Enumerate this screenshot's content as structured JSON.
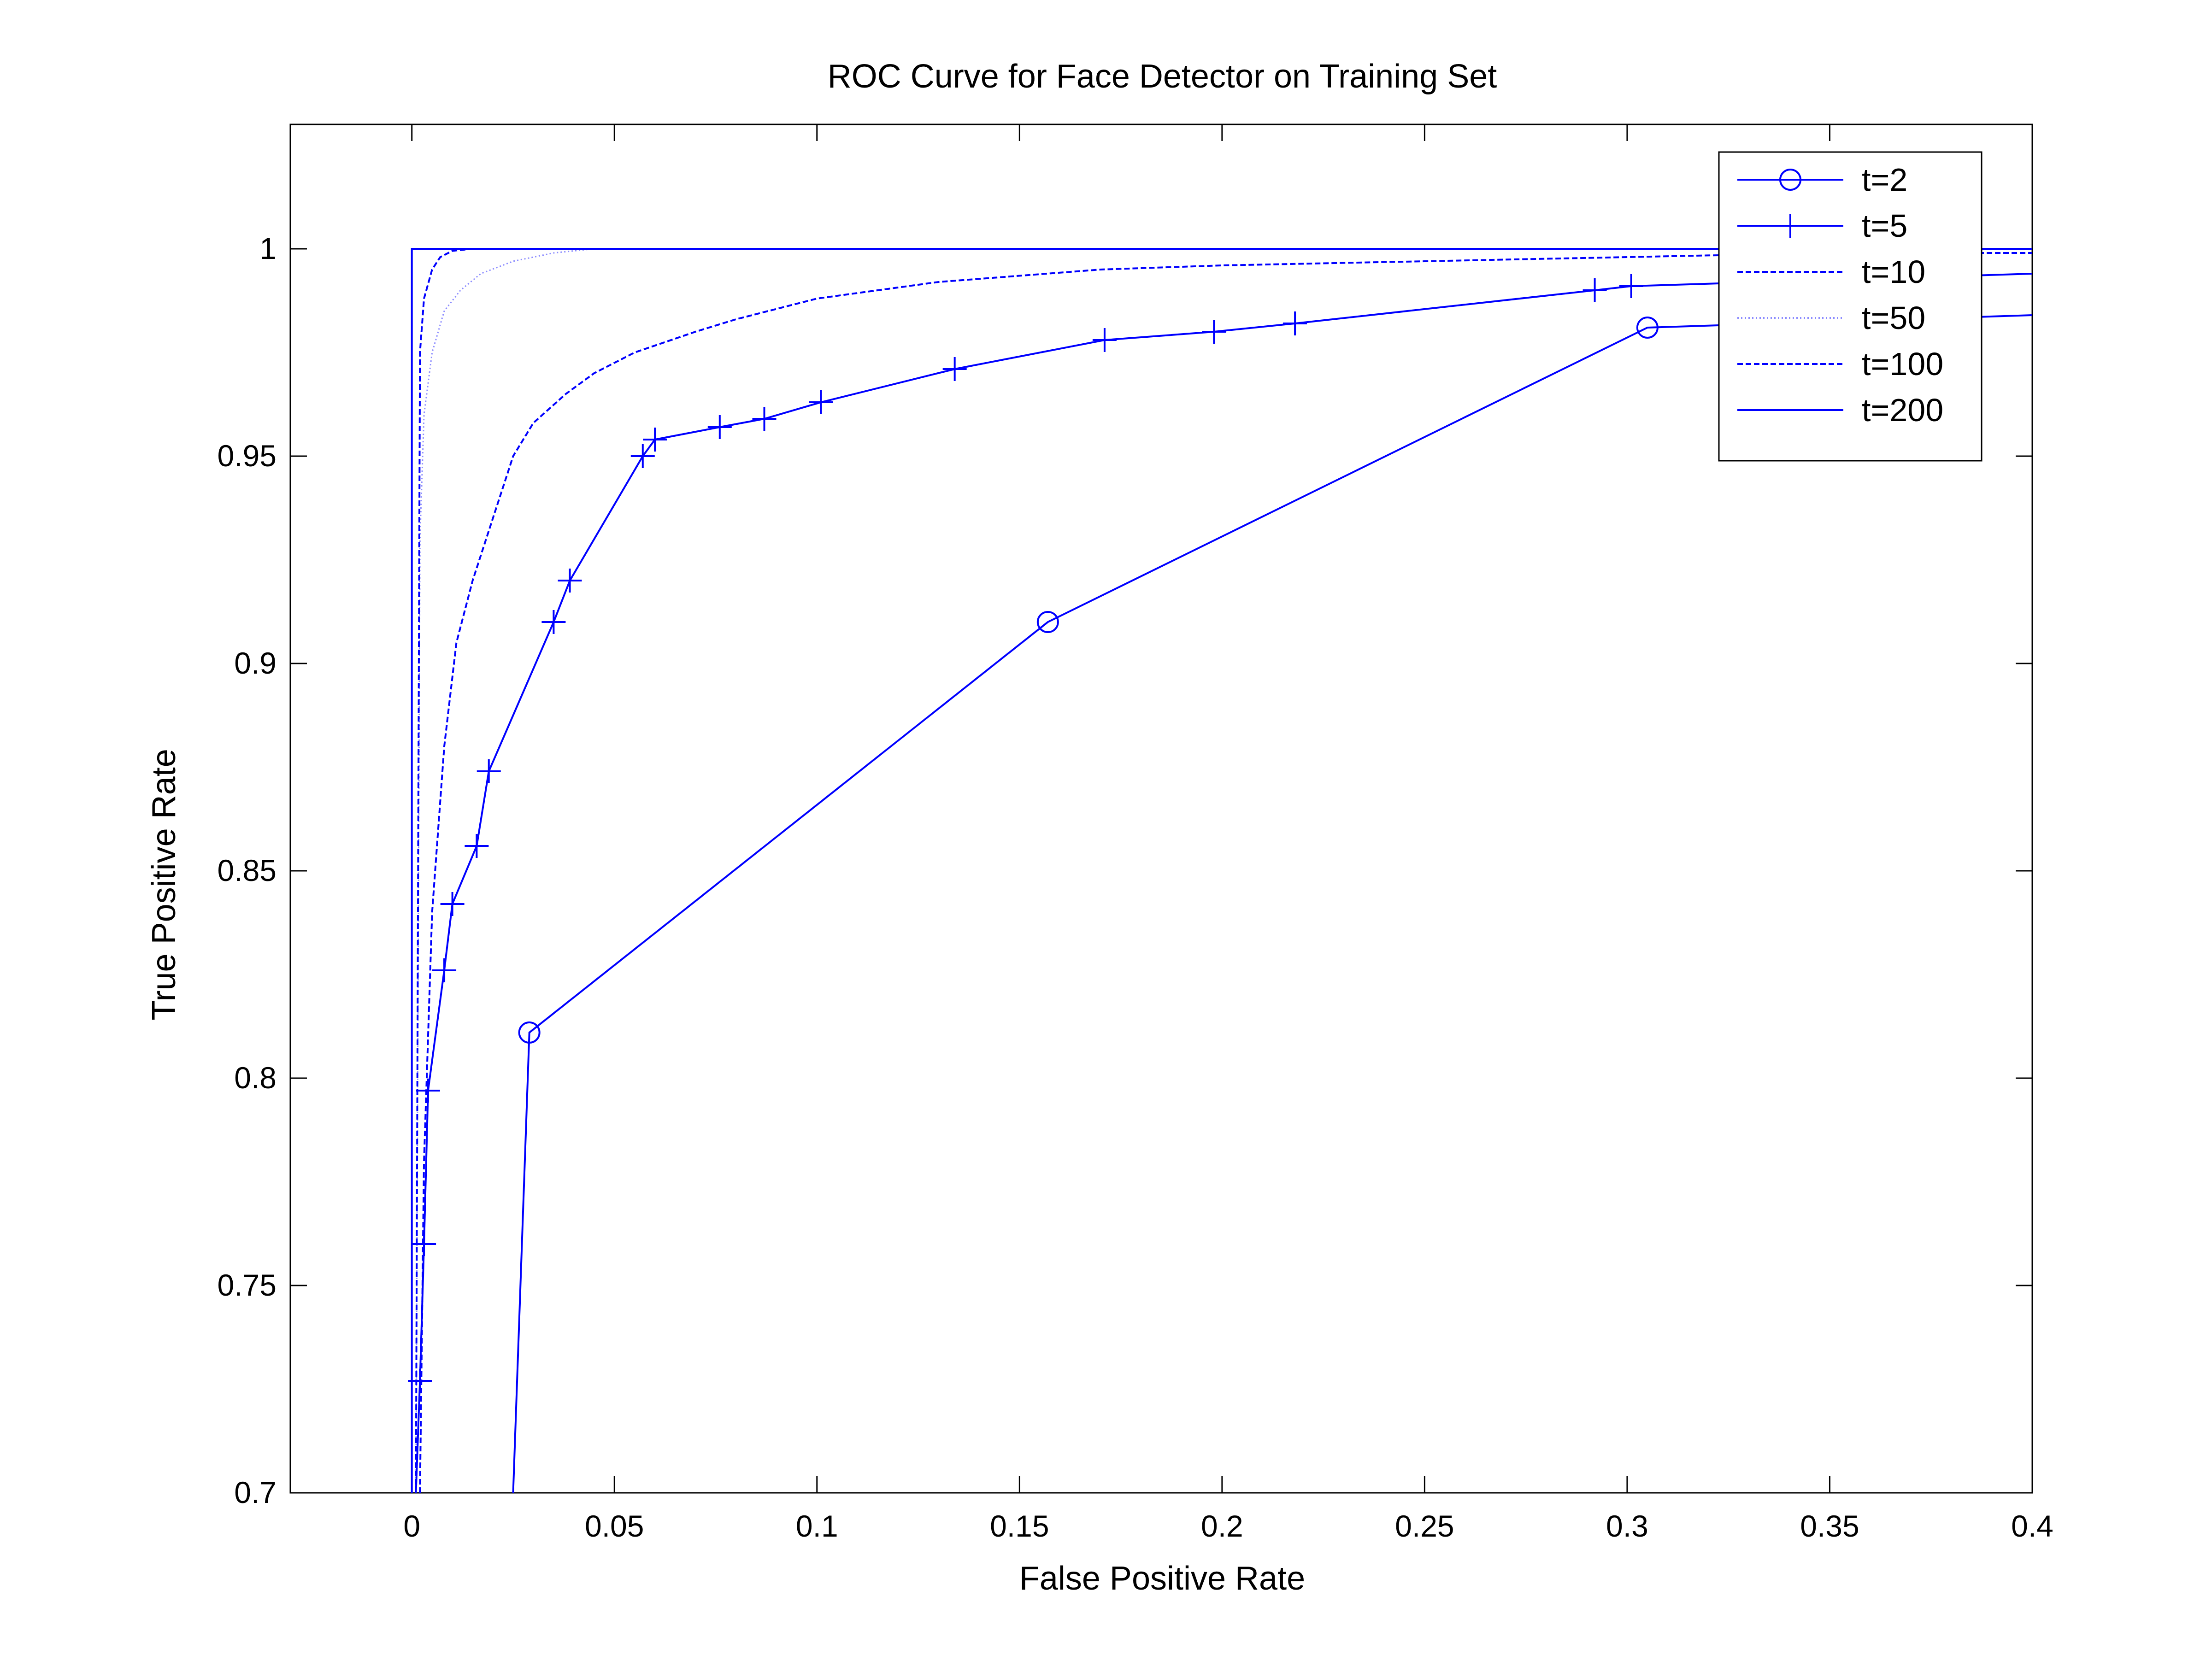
{
  "chart_data": {
    "type": "line",
    "title": "ROC Curve for Face Detector on Training Set",
    "xlabel": "False Positive Rate",
    "ylabel": "True Positive Rate",
    "xlim": [
      -0.03,
      0.4
    ],
    "ylim": [
      0.7,
      1.03
    ],
    "xticks": [
      0,
      0.05,
      0.1,
      0.15,
      0.2,
      0.25,
      0.3,
      0.35,
      0.4
    ],
    "xtick_labels": [
      "0",
      "0.05",
      "0.1",
      "0.15",
      "0.2",
      "0.25",
      "0.3",
      "0.35",
      "0.4"
    ],
    "yticks": [
      0.7,
      0.75,
      0.8,
      0.85,
      0.9,
      0.95,
      1.0
    ],
    "ytick_labels": [
      "0.7",
      "0.75",
      "0.8",
      "0.85",
      "0.9",
      "0.95",
      "1"
    ],
    "grid": false,
    "legend_position": "top-right",
    "line_color": "#0000ff",
    "series": [
      {
        "name": "t=2",
        "style": "solid",
        "marker": "circle",
        "x": [
          0.025,
          0.029,
          0.157,
          0.305,
          0.4
        ],
        "y": [
          0.7,
          0.811,
          0.91,
          0.981,
          0.984
        ]
      },
      {
        "name": "t=5",
        "style": "solid",
        "marker": "plus",
        "x": [
          0.001,
          0.002,
          0.003,
          0.004,
          0.008,
          0.01,
          0.016,
          0.019,
          0.035,
          0.039,
          0.057,
          0.06,
          0.076,
          0.087,
          0.101,
          0.134,
          0.171,
          0.198,
          0.218,
          0.292,
          0.301,
          0.4
        ],
        "y": [
          0.7,
          0.727,
          0.76,
          0.797,
          0.826,
          0.842,
          0.856,
          0.874,
          0.91,
          0.92,
          0.95,
          0.954,
          0.957,
          0.959,
          0.963,
          0.971,
          0.978,
          0.98,
          0.982,
          0.99,
          0.991,
          0.994
        ]
      },
      {
        "name": "t=10",
        "style": "dashed",
        "marker": "none",
        "x": [
          0.002,
          0.003,
          0.005,
          0.008,
          0.011,
          0.015,
          0.02,
          0.025,
          0.03,
          0.038,
          0.045,
          0.055,
          0.07,
          0.08,
          0.1,
          0.13,
          0.17,
          0.2,
          0.25,
          0.3,
          0.35,
          0.4
        ],
        "y": [
          0.7,
          0.78,
          0.84,
          0.88,
          0.905,
          0.92,
          0.935,
          0.95,
          0.958,
          0.965,
          0.97,
          0.975,
          0.98,
          0.983,
          0.988,
          0.992,
          0.995,
          0.996,
          0.997,
          0.998,
          0.999,
          0.999
        ]
      },
      {
        "name": "t=50",
        "style": "dotted",
        "marker": "none",
        "x": [
          0.001,
          0.002,
          0.003,
          0.005,
          0.008,
          0.012,
          0.017,
          0.025,
          0.035,
          0.045,
          0.4
        ],
        "y": [
          0.7,
          0.93,
          0.96,
          0.975,
          0.985,
          0.99,
          0.994,
          0.997,
          0.999,
          1.0,
          1.0
        ]
      },
      {
        "name": "t=100",
        "style": "dashed",
        "marker": "none",
        "x": [
          0.001,
          0.002,
          0.003,
          0.005,
          0.007,
          0.01,
          0.015,
          0.4
        ],
        "y": [
          0.7,
          0.975,
          0.988,
          0.995,
          0.998,
          0.9995,
          1.0,
          1.0
        ]
      },
      {
        "name": "t=200",
        "style": "solid",
        "marker": "none",
        "x": [
          0.0,
          0.0,
          0.4
        ],
        "y": [
          0.7,
          1.0,
          1.0
        ]
      }
    ]
  }
}
